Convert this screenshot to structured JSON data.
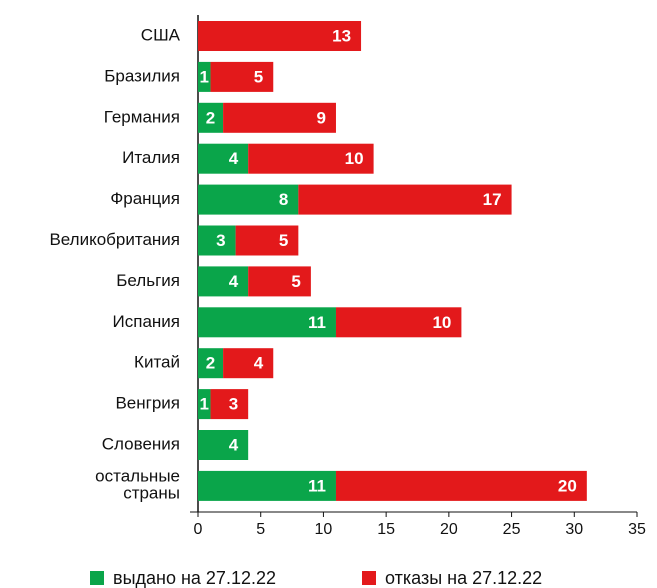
{
  "chart_data": {
    "type": "stacked-bar-horizontal",
    "categories": [
      "США",
      "Бразилия",
      "Германия",
      "Италия",
      "Франция",
      "Великобритания",
      "Бельгия",
      "Испания",
      "Китай",
      "Венгрия",
      "Словения",
      "остальные страны"
    ],
    "series": [
      {
        "name": "выдано на 27.12.22",
        "color": "#0aa54a",
        "values": [
          null,
          1,
          2,
          4,
          8,
          3,
          4,
          11,
          2,
          1,
          4,
          11
        ]
      },
      {
        "name": "отказы на 27.12.22",
        "color": "#e3191b",
        "values": [
          13,
          5,
          9,
          10,
          17,
          5,
          5,
          10,
          4,
          3,
          null,
          20
        ]
      }
    ],
    "xlim": [
      0,
      35
    ],
    "xticks": [
      0,
      5,
      10,
      15,
      20,
      25,
      30,
      35
    ],
    "legend": "bottom"
  }
}
